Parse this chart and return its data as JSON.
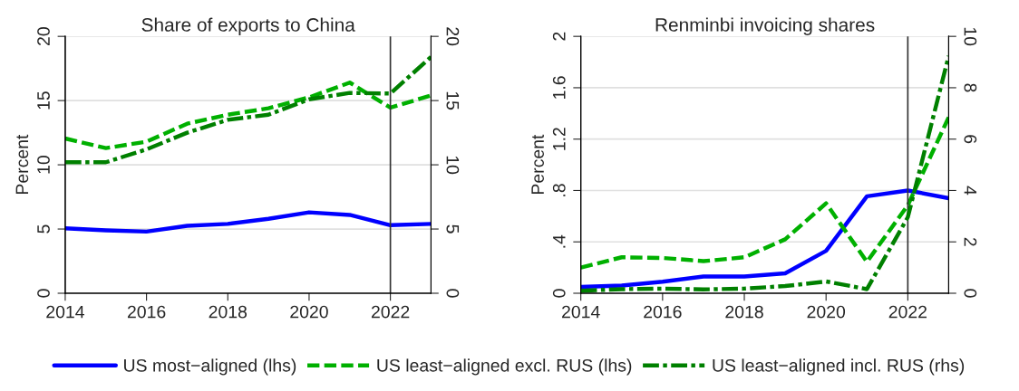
{
  "chart_data": [
    {
      "type": "line",
      "title": "Share of exports to China",
      "ylabel": "Percent",
      "x": [
        2014,
        2015,
        2016,
        2017,
        2018,
        2019,
        2020,
        2021,
        2022,
        2023
      ],
      "xlim": [
        2014,
        2023
      ],
      "xticks": [
        2014,
        2016,
        2018,
        2020,
        2022
      ],
      "ylim": [
        0,
        20
      ],
      "yticks": [
        0,
        5,
        10,
        15,
        20
      ],
      "y2lim": [
        0,
        20
      ],
      "y2ticks": [
        0,
        5,
        10,
        15,
        20
      ],
      "grid": "y",
      "legend": "bottom",
      "marker": "none",
      "ref_lines": [
        {
          "axis": "x",
          "value": 2022,
          "color": "#333333"
        }
      ],
      "series": [
        {
          "name": "US most−aligned (lhs)",
          "color": "#0000ff",
          "line_style": "solid",
          "values": [
            5.05,
            4.9,
            4.8,
            5.25,
            5.4,
            5.8,
            6.3,
            6.1,
            5.3,
            5.4
          ]
        },
        {
          "name": "US least−aligned excl. RUS (lhs)",
          "color": "#00b000",
          "line_style": "dashed",
          "values": [
            12.05,
            11.3,
            11.8,
            13.2,
            13.9,
            14.4,
            15.25,
            16.4,
            14.45,
            15.4
          ]
        },
        {
          "name": "US least−aligned incl. RUS (rhs)",
          "color": "#008000",
          "line_style": "dashdot",
          "axis": "y2",
          "values": [
            10.2,
            10.2,
            11.2,
            12.5,
            13.5,
            13.9,
            15.1,
            15.6,
            15.55,
            18.4
          ]
        }
      ]
    },
    {
      "type": "line",
      "title": "Renminbi invoicing shares",
      "ylabel": "Percent",
      "x": [
        2014,
        2015,
        2016,
        2017,
        2018,
        2019,
        2020,
        2021,
        2022,
        2023
      ],
      "xlim": [
        2014,
        2023
      ],
      "xticks": [
        2014,
        2016,
        2018,
        2020,
        2022
      ],
      "ylim": [
        0,
        2
      ],
      "yticks": [
        0,
        {
          "value": 0.4,
          "label": ".4"
        },
        {
          "value": 0.8,
          "label": ".8"
        },
        1.2,
        1.6,
        2
      ],
      "y2lim": [
        0,
        10
      ],
      "y2ticks": [
        0,
        2,
        4,
        6,
        8,
        10
      ],
      "grid": "y",
      "marker": "none",
      "ref_lines": [
        {
          "axis": "x",
          "value": 2022,
          "color": "#333333"
        }
      ],
      "series": [
        {
          "color": "#0000ff",
          "line_style": "solid",
          "values": [
            0.05,
            0.06,
            0.09,
            0.13,
            0.13,
            0.155,
            0.33,
            0.755,
            0.8,
            0.74
          ]
        },
        {
          "color": "#00b000",
          "line_style": "dashed",
          "values": [
            0.2,
            0.28,
            0.275,
            0.25,
            0.28,
            0.42,
            0.7,
            0.245,
            0.685,
            1.37
          ]
        },
        {
          "color": "#008000",
          "line_style": "dashdot",
          "axis": "y2",
          "values": [
            0.1,
            0.16,
            0.18,
            0.15,
            0.18,
            0.28,
            0.46,
            0.16,
            2.96,
            9.24
          ]
        }
      ]
    }
  ]
}
